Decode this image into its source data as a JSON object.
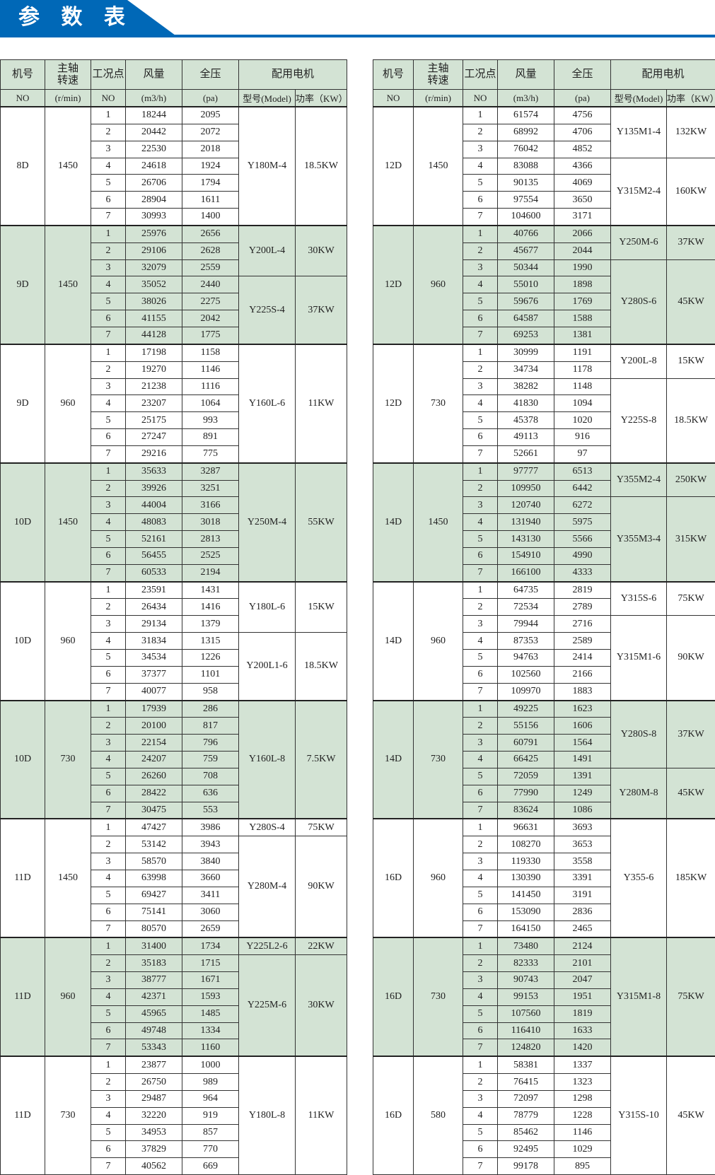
{
  "page": {
    "title": "参 数 表",
    "brand_color": "#0068b7",
    "shade_color": "#d3e3d4"
  },
  "headers": {
    "row1": [
      "机号",
      "主轴\n转速",
      "工况点",
      "风量",
      "全压",
      "配用电机"
    ],
    "row2": [
      "NO",
      "(r/min)",
      "NO",
      "(m3/h)",
      "(pa)",
      "型号(Model)",
      "功率（KW）"
    ]
  },
  "tables": [
    {
      "groups": [
        {
          "no": "8D",
          "speed": "1450",
          "shaded": false,
          "points": [
            [
              "1",
              "18244",
              "2095"
            ],
            [
              "2",
              "20442",
              "2072"
            ],
            [
              "3",
              "22530",
              "2018"
            ],
            [
              "4",
              "24618",
              "1924"
            ],
            [
              "5",
              "26706",
              "1794"
            ],
            [
              "6",
              "28904",
              "1611"
            ],
            [
              "7",
              "30993",
              "1400"
            ]
          ],
          "motors": [
            {
              "model": "Y180M-4",
              "power": "18.5KW",
              "rows": 7
            }
          ]
        },
        {
          "no": "9D",
          "speed": "1450",
          "shaded": true,
          "points": [
            [
              "1",
              "25976",
              "2656"
            ],
            [
              "2",
              "29106",
              "2628"
            ],
            [
              "3",
              "32079",
              "2559"
            ],
            [
              "4",
              "35052",
              "2440"
            ],
            [
              "5",
              "38026",
              "2275"
            ],
            [
              "6",
              "41155",
              "2042"
            ],
            [
              "7",
              "44128",
              "1775"
            ]
          ],
          "motors": [
            {
              "model": "Y200L-4",
              "power": "30KW",
              "rows": 3
            },
            {
              "model": "Y225S-4",
              "power": "37KW",
              "rows": 4
            }
          ]
        },
        {
          "no": "9D",
          "speed": "960",
          "shaded": false,
          "points": [
            [
              "1",
              "17198",
              "1158"
            ],
            [
              "2",
              "19270",
              "1146"
            ],
            [
              "3",
              "21238",
              "1116"
            ],
            [
              "4",
              "23207",
              "1064"
            ],
            [
              "5",
              "25175",
              "993"
            ],
            [
              "6",
              "27247",
              "891"
            ],
            [
              "7",
              "29216",
              "775"
            ]
          ],
          "motors": [
            {
              "model": "Y160L-6",
              "power": "11KW",
              "rows": 7
            }
          ]
        },
        {
          "no": "10D",
          "speed": "1450",
          "shaded": true,
          "points": [
            [
              "1",
              "35633",
              "3287"
            ],
            [
              "2",
              "39926",
              "3251"
            ],
            [
              "3",
              "44004",
              "3166"
            ],
            [
              "4",
              "48083",
              "3018"
            ],
            [
              "5",
              "52161",
              "2813"
            ],
            [
              "6",
              "56455",
              "2525"
            ],
            [
              "7",
              "60533",
              "2194"
            ]
          ],
          "motors": [
            {
              "model": "Y250M-4",
              "power": "55KW",
              "rows": 7
            }
          ]
        },
        {
          "no": "10D",
          "speed": "960",
          "shaded": false,
          "points": [
            [
              "1",
              "23591",
              "1431"
            ],
            [
              "2",
              "26434",
              "1416"
            ],
            [
              "3",
              "29134",
              "1379"
            ],
            [
              "4",
              "31834",
              "1315"
            ],
            [
              "5",
              "34534",
              "1226"
            ],
            [
              "6",
              "37377",
              "1101"
            ],
            [
              "7",
              "40077",
              "958"
            ]
          ],
          "motors": [
            {
              "model": "Y180L-6",
              "power": "15KW",
              "rows": 3
            },
            {
              "model": "Y200L1-6",
              "power": "18.5KW",
              "rows": 4
            }
          ]
        },
        {
          "no": "10D",
          "speed": "730",
          "shaded": true,
          "points": [
            [
              "1",
              "17939",
              "286"
            ],
            [
              "2",
              "20100",
              "817"
            ],
            [
              "3",
              "22154",
              "796"
            ],
            [
              "4",
              "24207",
              "759"
            ],
            [
              "5",
              "26260",
              "708"
            ],
            [
              "6",
              "28422",
              "636"
            ],
            [
              "7",
              "30475",
              "553"
            ]
          ],
          "motors": [
            {
              "model": "Y160L-8",
              "power": "7.5KW",
              "rows": 7
            }
          ]
        },
        {
          "no": "11D",
          "speed": "1450",
          "shaded": false,
          "points": [
            [
              "1",
              "47427",
              "3986"
            ],
            [
              "2",
              "53142",
              "3943"
            ],
            [
              "3",
              "58570",
              "3840"
            ],
            [
              "4",
              "63998",
              "3660"
            ],
            [
              "5",
              "69427",
              "3411"
            ],
            [
              "6",
              "75141",
              "3060"
            ],
            [
              "7",
              "80570",
              "2659"
            ]
          ],
          "motors": [
            {
              "model": "Y280S-4",
              "power": "75KW",
              "rows": 1
            },
            {
              "model": "Y280M-4",
              "power": "90KW",
              "rows": 6
            }
          ]
        },
        {
          "no": "11D",
          "speed": "960",
          "shaded": true,
          "points": [
            [
              "1",
              "31400",
              "1734"
            ],
            [
              "2",
              "35183",
              "1715"
            ],
            [
              "3",
              "38777",
              "1671"
            ],
            [
              "4",
              "42371",
              "1593"
            ],
            [
              "5",
              "45965",
              "1485"
            ],
            [
              "6",
              "49748",
              "1334"
            ],
            [
              "7",
              "53343",
              "1160"
            ]
          ],
          "motors": [
            {
              "model": "Y225L2-6",
              "power": "22KW",
              "rows": 1
            },
            {
              "model": "Y225M-6",
              "power": "30KW",
              "rows": 6
            }
          ]
        },
        {
          "no": "11D",
          "speed": "730",
          "shaded": false,
          "points": [
            [
              "1",
              "23877",
              "1000"
            ],
            [
              "2",
              "26750",
              "989"
            ],
            [
              "3",
              "29487",
              "964"
            ],
            [
              "4",
              "32220",
              "919"
            ],
            [
              "5",
              "34953",
              "857"
            ],
            [
              "6",
              "37829",
              "770"
            ],
            [
              "7",
              "40562",
              "669"
            ]
          ],
          "motors": [
            {
              "model": "Y180L-8",
              "power": "11KW",
              "rows": 7
            }
          ]
        }
      ]
    },
    {
      "groups": [
        {
          "no": "12D",
          "speed": "1450",
          "shaded": false,
          "points": [
            [
              "1",
              "61574",
              "4756"
            ],
            [
              "2",
              "68992",
              "4706"
            ],
            [
              "3",
              "76042",
              "4852"
            ],
            [
              "4",
              "83088",
              "4366"
            ],
            [
              "5",
              "90135",
              "4069"
            ],
            [
              "6",
              "97554",
              "3650"
            ],
            [
              "7",
              "104600",
              "3171"
            ]
          ],
          "motors": [
            {
              "model": "Y135M1-4",
              "power": "132KW",
              "rows": 3
            },
            {
              "model": "Y315M2-4",
              "power": "160KW",
              "rows": 4
            }
          ]
        },
        {
          "no": "12D",
          "speed": "960",
          "shaded": true,
          "points": [
            [
              "1",
              "40766",
              "2066"
            ],
            [
              "2",
              "45677",
              "2044"
            ],
            [
              "3",
              "50344",
              "1990"
            ],
            [
              "4",
              "55010",
              "1898"
            ],
            [
              "5",
              "59676",
              "1769"
            ],
            [
              "6",
              "64587",
              "1588"
            ],
            [
              "7",
              "69253",
              "1381"
            ]
          ],
          "motors": [
            {
              "model": "Y250M-6",
              "power": "37KW",
              "rows": 2
            },
            {
              "model": "Y280S-6",
              "power": "45KW",
              "rows": 5
            }
          ]
        },
        {
          "no": "12D",
          "speed": "730",
          "shaded": false,
          "points": [
            [
              "1",
              "30999",
              "1191"
            ],
            [
              "2",
              "34734",
              "1178"
            ],
            [
              "3",
              "38282",
              "1148"
            ],
            [
              "4",
              "41830",
              "1094"
            ],
            [
              "5",
              "45378",
              "1020"
            ],
            [
              "6",
              "49113",
              "916"
            ],
            [
              "7",
              "52661",
              "97"
            ]
          ],
          "motors": [
            {
              "model": "Y200L-8",
              "power": "15KW",
              "rows": 2
            },
            {
              "model": "Y225S-8",
              "power": "18.5KW",
              "rows": 5
            }
          ]
        },
        {
          "no": "14D",
          "speed": "1450",
          "shaded": true,
          "points": [
            [
              "1",
              "97777",
              "6513"
            ],
            [
              "2",
              "109950",
              "6442"
            ],
            [
              "3",
              "120740",
              "6272"
            ],
            [
              "4",
              "131940",
              "5975"
            ],
            [
              "5",
              "143130",
              "5566"
            ],
            [
              "6",
              "154910",
              "4990"
            ],
            [
              "7",
              "166100",
              "4333"
            ]
          ],
          "motors": [
            {
              "model": "Y355M2-4",
              "power": "250KW",
              "rows": 2
            },
            {
              "model": "Y355M3-4",
              "power": "315KW",
              "rows": 5
            }
          ]
        },
        {
          "no": "14D",
          "speed": "960",
          "shaded": false,
          "points": [
            [
              "1",
              "64735",
              "2819"
            ],
            [
              "2",
              "72534",
              "2789"
            ],
            [
              "3",
              "79944",
              "2716"
            ],
            [
              "4",
              "87353",
              "2589"
            ],
            [
              "5",
              "94763",
              "2414"
            ],
            [
              "6",
              "102560",
              "2166"
            ],
            [
              "7",
              "109970",
              "1883"
            ]
          ],
          "motors": [
            {
              "model": "Y315S-6",
              "power": "75KW",
              "rows": 2
            },
            {
              "model": "Y315M1-6",
              "power": "90KW",
              "rows": 5
            }
          ]
        },
        {
          "no": "14D",
          "speed": "730",
          "shaded": true,
          "points": [
            [
              "1",
              "49225",
              "1623"
            ],
            [
              "2",
              "55156",
              "1606"
            ],
            [
              "3",
              "60791",
              "1564"
            ],
            [
              "4",
              "66425",
              "1491"
            ],
            [
              "5",
              "72059",
              "1391"
            ],
            [
              "6",
              "77990",
              "1249"
            ],
            [
              "7",
              "83624",
              "1086"
            ]
          ],
          "motors": [
            {
              "model": "Y280S-8",
              "power": "37KW",
              "rows": 4
            },
            {
              "model": "Y280M-8",
              "power": "45KW",
              "rows": 3
            }
          ]
        },
        {
          "no": "16D",
          "speed": "960",
          "shaded": false,
          "points": [
            [
              "1",
              "96631",
              "3693"
            ],
            [
              "2",
              "108270",
              "3653"
            ],
            [
              "3",
              "119330",
              "3558"
            ],
            [
              "4",
              "130390",
              "3391"
            ],
            [
              "5",
              "141450",
              "3191"
            ],
            [
              "6",
              "153090",
              "2836"
            ],
            [
              "7",
              "164150",
              "2465"
            ]
          ],
          "motors": [
            {
              "model": "Y355-6",
              "power": "185KW",
              "rows": 7
            }
          ]
        },
        {
          "no": "16D",
          "speed": "730",
          "shaded": true,
          "points": [
            [
              "1",
              "73480",
              "2124"
            ],
            [
              "2",
              "82333",
              "2101"
            ],
            [
              "3",
              "90743",
              "2047"
            ],
            [
              "4",
              "99153",
              "1951"
            ],
            [
              "5",
              "107560",
              "1819"
            ],
            [
              "6",
              "116410",
              "1633"
            ],
            [
              "7",
              "124820",
              "1420"
            ]
          ],
          "motors": [
            {
              "model": "Y315M1-8",
              "power": "75KW",
              "rows": 7
            }
          ]
        },
        {
          "no": "16D",
          "speed": "580",
          "shaded": false,
          "points": [
            [
              "1",
              "58381",
              "1337"
            ],
            [
              "2",
              "76415",
              "1323"
            ],
            [
              "3",
              "72097",
              "1298"
            ],
            [
              "4",
              "78779",
              "1228"
            ],
            [
              "5",
              "85462",
              "1146"
            ],
            [
              "6",
              "92495",
              "1029"
            ],
            [
              "7",
              "99178",
              "895"
            ]
          ],
          "motors": [
            {
              "model": "Y315S-10",
              "power": "45KW",
              "rows": 7
            }
          ]
        }
      ]
    }
  ]
}
